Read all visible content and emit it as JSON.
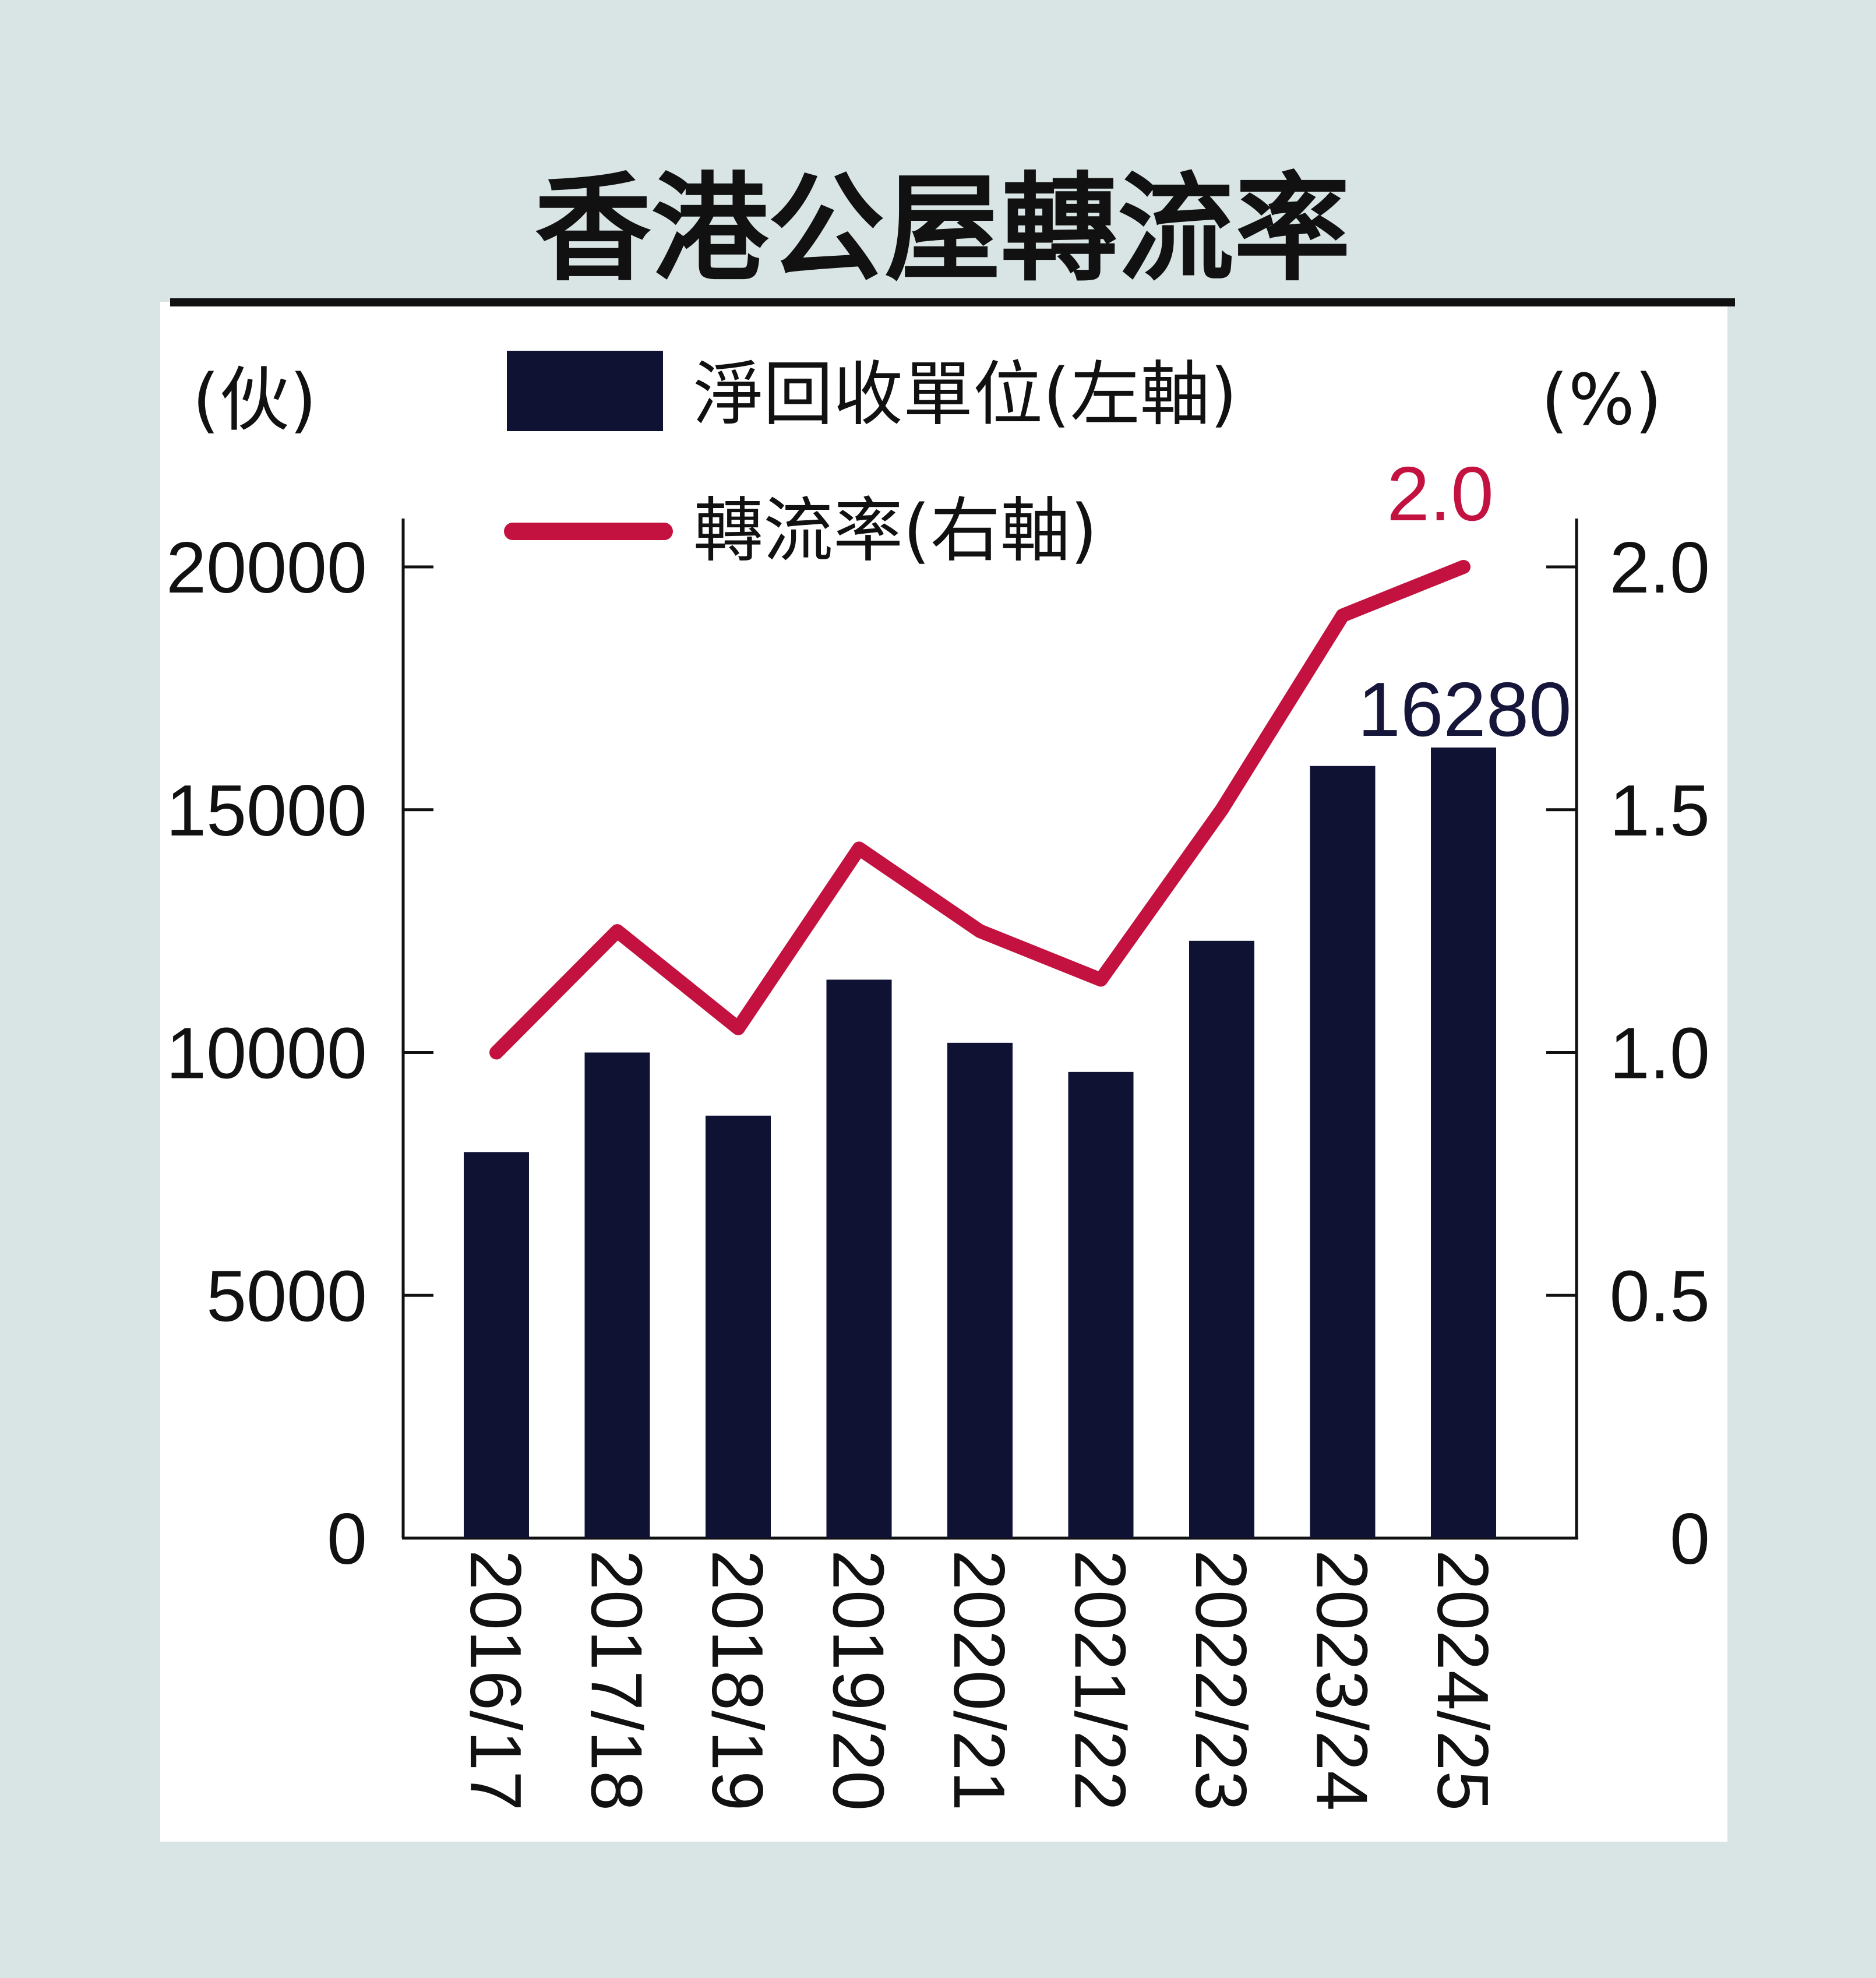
{
  "chart_data": {
    "type": "bar",
    "title": "香港公屋轉流率",
    "left_unit": "(伙)",
    "right_unit": "(%)",
    "categories": [
      "2016/17",
      "2017/18",
      "2018/19",
      "2019/20",
      "2020/21",
      "2021/22",
      "2022/23",
      "2023/24",
      "2024/25"
    ],
    "series": [
      {
        "name": "淨回收單位(左軸)",
        "type": "bar",
        "axis": "left",
        "color": "#101234",
        "values": [
          7950,
          10000,
          8700,
          11500,
          10200,
          9600,
          12300,
          15900,
          16280
        ]
      },
      {
        "name": "轉流率(右軸)",
        "type": "line",
        "axis": "right",
        "color": "#c3123f",
        "values": [
          1.0,
          1.25,
          1.05,
          1.42,
          1.25,
          1.15,
          1.5,
          1.9,
          2.0
        ]
      }
    ],
    "left_axis": {
      "ylim": [
        0,
        20000
      ],
      "ticks": [
        0,
        5000,
        10000,
        15000,
        20000
      ],
      "tick_labels": [
        "0",
        "5000",
        "10000",
        "15000",
        "20000"
      ]
    },
    "right_axis": {
      "ylim": [
        0,
        2.0
      ],
      "ticks": [
        0,
        0.5,
        1.0,
        1.5,
        2.0
      ],
      "tick_labels": [
        "0",
        "0.5",
        "1.0",
        "1.5",
        "2.0"
      ]
    },
    "annotations": [
      {
        "series": "淨回收單位(左軸)",
        "category": "2024/25",
        "text": "16280"
      },
      {
        "series": "轉流率(右軸)",
        "category": "2024/25",
        "text": "2.0"
      }
    ],
    "legend_position": "top",
    "grid": false,
    "background_color": "#d9e5e4",
    "panel_color": "#ffffff"
  }
}
